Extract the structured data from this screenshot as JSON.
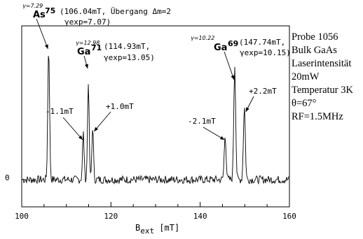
{
  "chart_data": {
    "type": "line",
    "title": "",
    "xlabel_main": "B",
    "xlabel_sub": "ext",
    "xlabel_unit": " [mT]",
    "xlim": [
      100,
      160
    ],
    "x_ticks": [
      "100",
      "120",
      "140",
      "160"
    ],
    "y_ticks": [
      "0"
    ],
    "grid": false,
    "series": [
      {
        "peaks": [
          {
            "x": 106.04,
            "height": 1.0,
            "width": 0.28
          },
          {
            "x": 113.8,
            "height": 0.35,
            "width": 0.25
          },
          {
            "x": 114.93,
            "height": 0.74,
            "width": 0.25
          },
          {
            "x": 115.9,
            "height": 0.4,
            "width": 0.25
          },
          {
            "x": 145.6,
            "height": 0.33,
            "width": 0.3
          },
          {
            "x": 147.74,
            "height": 0.86,
            "width": 0.3
          },
          {
            "x": 149.9,
            "height": 0.55,
            "width": 0.3
          }
        ],
        "noise_level": 0.03
      }
    ],
    "peak_labels": [
      {
        "gamma": "γ=7.29",
        "isotope": "As",
        "mass": "75",
        "detail": "(106.04mT, Übergang Δm=2",
        "gexp": "γexp=7.07)"
      },
      {
        "gamma": "γ=12.98",
        "isotope": "Ga",
        "mass": "71",
        "detail": "(114.93mT,",
        "gexp": "γexp=13.05)"
      },
      {
        "gamma": "γ=10.22",
        "isotope": "Ga",
        "mass": "69",
        "detail": "(147.74mT,",
        "gexp": "γexp=10.15)"
      }
    ],
    "satellites": [
      {
        "label": "-1.1mT",
        "x": 113.8
      },
      {
        "label": "+1.0mT",
        "x": 115.9
      },
      {
        "label": "-2.1mT",
        "x": 145.6
      },
      {
        "label": "+2.2mT",
        "x": 149.9
      }
    ]
  },
  "info_lines": [
    "Probe 1056",
    "Bulk GaAs",
    "Laserintensität",
    "20mW",
    "Temperatur 3K",
    "θ=67°",
    "RF=1.5MHz"
  ]
}
